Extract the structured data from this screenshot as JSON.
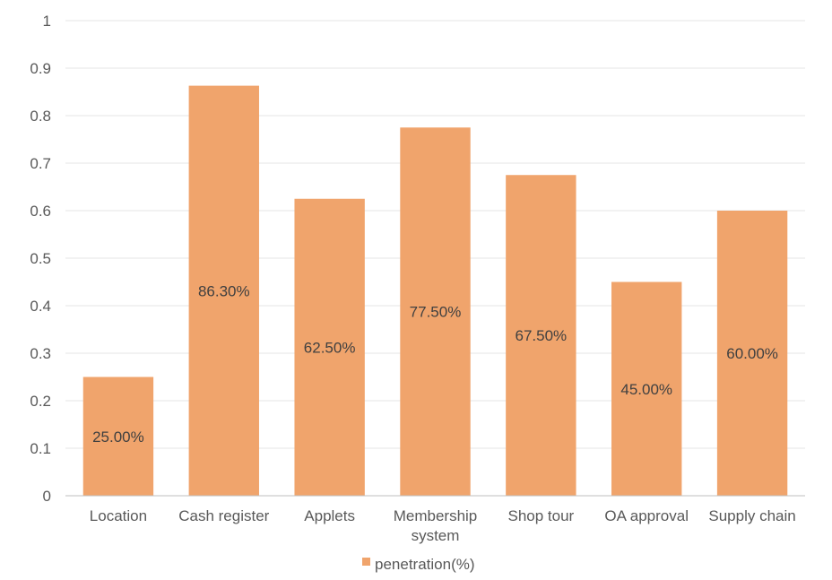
{
  "chart_data": {
    "type": "bar",
    "categories": [
      [
        "Location"
      ],
      [
        "Cash register"
      ],
      [
        "Applets"
      ],
      [
        "Membership",
        "system"
      ],
      [
        "Shop tour"
      ],
      [
        "OA approval"
      ],
      [
        "Supply chain"
      ]
    ],
    "series": [
      {
        "name": "penetration(%)",
        "values": [
          0.25,
          0.863,
          0.625,
          0.775,
          0.675,
          0.45,
          0.6
        ],
        "labels": [
          "25.00%",
          "86.30%",
          "62.50%",
          "77.50%",
          "67.50%",
          "45.00%",
          "60.00%"
        ],
        "color": "#f0a46c"
      }
    ],
    "ylim": [
      0,
      1
    ],
    "yticks": [
      "0",
      "0.1",
      "0.2",
      "0.3",
      "0.4",
      "0.5",
      "0.6",
      "0.7",
      "0.8",
      "0.9",
      "1"
    ],
    "grid": true,
    "legend": "bottom",
    "gridColor": "#e6e6e6",
    "axisColor": "#bfbfbf"
  }
}
